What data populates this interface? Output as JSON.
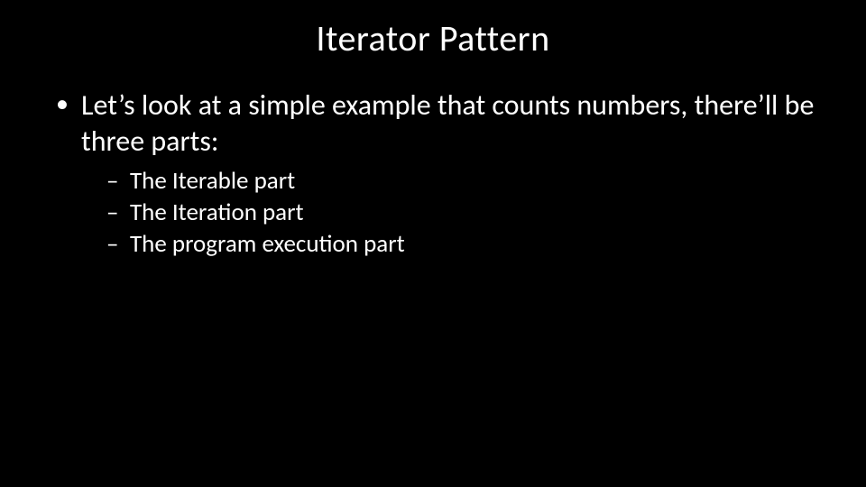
{
  "slide": {
    "title": "Iterator Pattern",
    "bullets": [
      {
        "text": "Let’s look at a simple example that counts numbers, there’ll be three parts:",
        "sub": [
          "The Iterable part",
          "The Iteration part",
          "The program execution part"
        ]
      }
    ],
    "colors": {
      "background": "#000000",
      "text": "#ffffff"
    },
    "fonts": {
      "title_size_pt": 40,
      "body_size_pt": 32,
      "sub_size_pt": 27,
      "family": "Calibri"
    }
  }
}
